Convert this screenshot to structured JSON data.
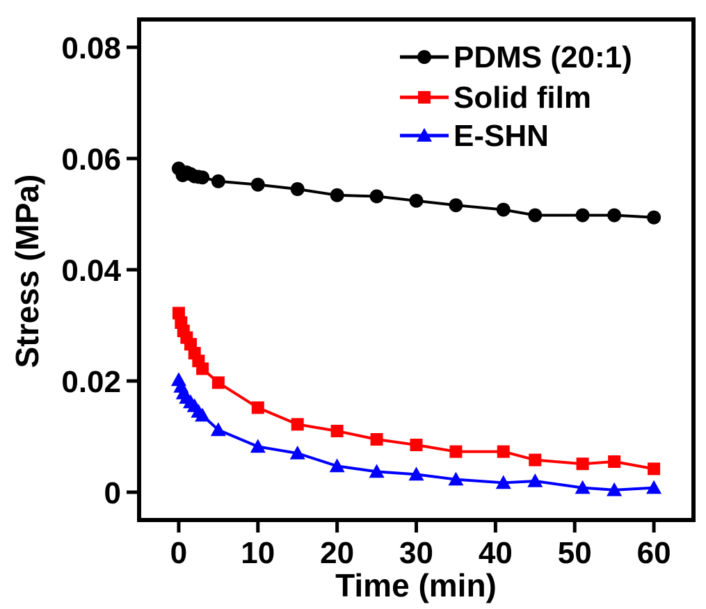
{
  "chart_data": {
    "type": "line",
    "xlabel": "Time (min)",
    "ylabel": "Stress (MPa)",
    "xlim": [
      -5,
      65
    ],
    "ylim": [
      -0.005,
      0.085
    ],
    "xticks": [
      0,
      10,
      20,
      30,
      40,
      50,
      60
    ],
    "xtick_labels": [
      "0",
      "10",
      "20",
      "30",
      "40",
      "50",
      "60"
    ],
    "yticks": [
      0,
      0.02,
      0.04,
      0.06,
      0.08
    ],
    "ytick_labels": [
      "0",
      "0.02",
      "0.04",
      "0.06",
      "0.08"
    ],
    "grid": false,
    "legend_position": "top-right",
    "series": [
      {
        "name": "PDMS (20:1)",
        "color": "#000000",
        "marker": "circle",
        "x": [
          0,
          0.5,
          1,
          1.5,
          2,
          2.5,
          3,
          5,
          10,
          15,
          20,
          25,
          30,
          35,
          41,
          45,
          51,
          55,
          60
        ],
        "y": [
          0.0582,
          0.057,
          0.0575,
          0.0572,
          0.0568,
          0.0567,
          0.0566,
          0.0559,
          0.0553,
          0.0545,
          0.0534,
          0.0532,
          0.0524,
          0.0516,
          0.0508,
          0.0498,
          0.0498,
          0.0498,
          0.0494
        ]
      },
      {
        "name": "Solid film",
        "color": "#ff0000",
        "marker": "square",
        "x": [
          0,
          0.3,
          0.6,
          1,
          1.5,
          2,
          2.5,
          3,
          5,
          10,
          15,
          20,
          25,
          30,
          35,
          41,
          45,
          51,
          55,
          60
        ],
        "y": [
          0.0322,
          0.0305,
          0.029,
          0.0278,
          0.0266,
          0.025,
          0.0236,
          0.0222,
          0.0197,
          0.0152,
          0.0122,
          0.011,
          0.0095,
          0.0085,
          0.0073,
          0.0073,
          0.0058,
          0.0051,
          0.0055,
          0.0042
        ]
      },
      {
        "name": "E-SHN",
        "color": "#0000ff",
        "marker": "triangle",
        "x": [
          0,
          0.3,
          0.6,
          1,
          1.5,
          2,
          2.5,
          3,
          5,
          10,
          15,
          20,
          25,
          30,
          35,
          41,
          45,
          51,
          55,
          60
        ],
        "y": [
          0.0202,
          0.019,
          0.0178,
          0.017,
          0.0162,
          0.0155,
          0.0145,
          0.0138,
          0.0112,
          0.0082,
          0.007,
          0.0047,
          0.0037,
          0.0032,
          0.0023,
          0.0017,
          0.002,
          0.0008,
          0.0004,
          0.0008
        ]
      }
    ]
  }
}
